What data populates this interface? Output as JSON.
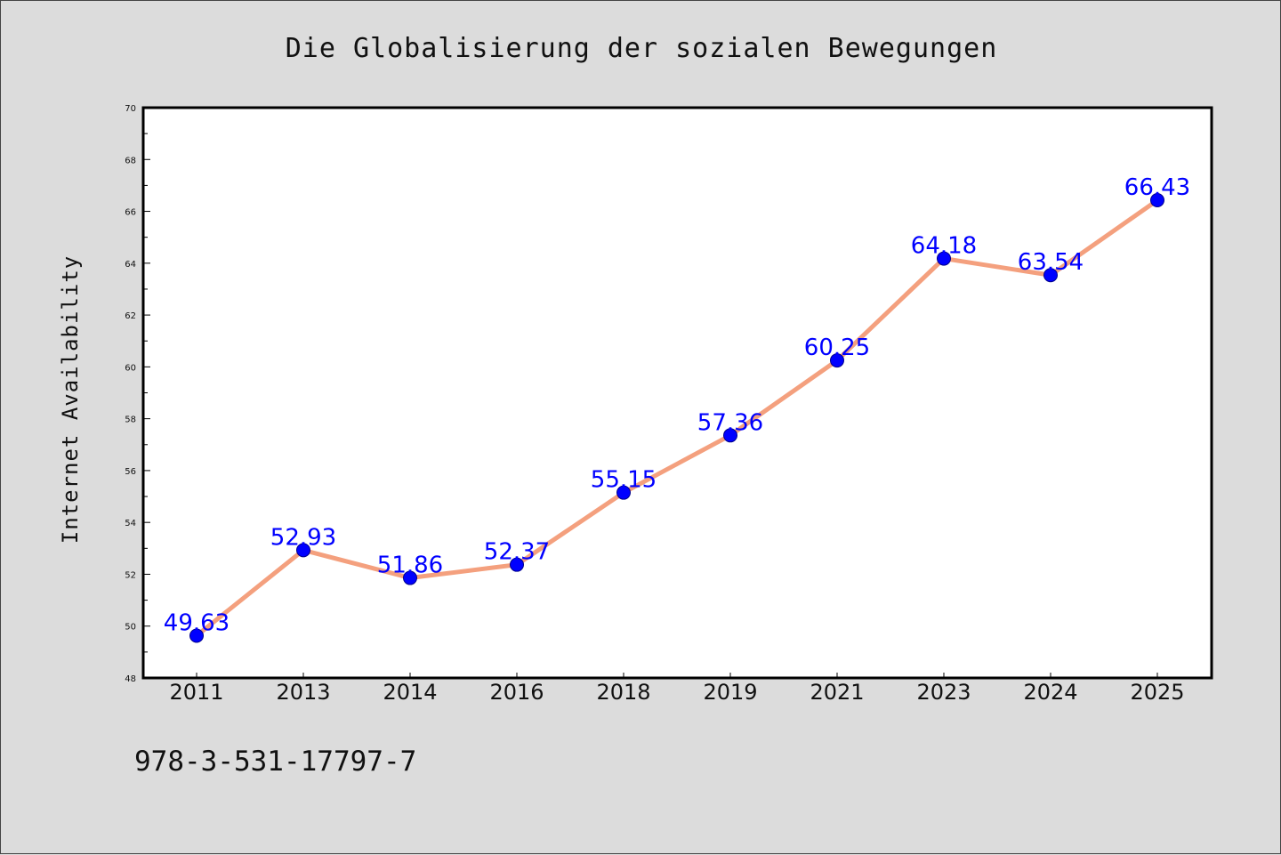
{
  "footer_text": "978-3-531-17797-7",
  "colors": {
    "background": "#dcdcdc",
    "plot_background": "#ffffff",
    "line": "#f4a07e",
    "marker": "#0000ff",
    "data_label": "#0000ff"
  },
  "chart_data": {
    "type": "line",
    "title": "Die Globalisierung der sozialen Bewegungen",
    "xlabel": "",
    "ylabel": "Internet Availability",
    "categories": [
      "2011",
      "2013",
      "2014",
      "2016",
      "2018",
      "2019",
      "2021",
      "2023",
      "2024",
      "2025"
    ],
    "series": [
      {
        "values": [
          49.63,
          52.93,
          51.86,
          52.37,
          55.15,
          57.36,
          60.25,
          64.18,
          63.54,
          66.43
        ],
        "labels": [
          "49.63",
          "52.93",
          "51.86",
          "52.37",
          "55.15",
          "57.36",
          "60.25",
          "64.18",
          "63.54",
          "66.43"
        ]
      }
    ],
    "ylim": [
      48,
      70
    ],
    "yticks": [
      48,
      50,
      52,
      54,
      56,
      58,
      60,
      62,
      64,
      66,
      68,
      70
    ],
    "grid": false,
    "legend": "none"
  }
}
